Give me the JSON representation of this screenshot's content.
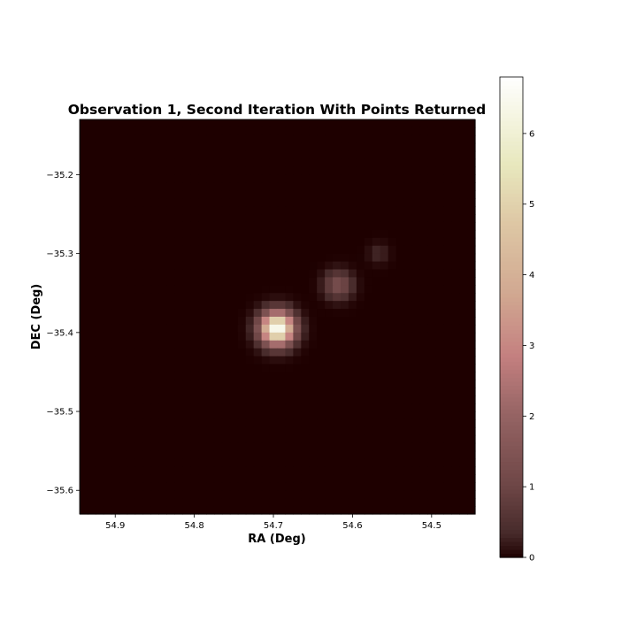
{
  "chart_data": {
    "type": "heatmap",
    "title": "Observation 1, Second Iteration With Points Returned",
    "xlabel": "RA (Deg)",
    "ylabel": "DEC (Deg)",
    "xlim": [
      54.945,
      54.445
    ],
    "ylim": [
      -35.63,
      -35.13
    ],
    "x_ticks": [
      {
        "value": 54.9,
        "label": "54.9"
      },
      {
        "value": 54.8,
        "label": "54.8"
      },
      {
        "value": 54.7,
        "label": "54.7"
      },
      {
        "value": 54.6,
        "label": "54.6"
      },
      {
        "value": 54.5,
        "label": "54.5"
      }
    ],
    "y_ticks": [
      {
        "value": -35.2,
        "label": "−35.2"
      },
      {
        "value": -35.3,
        "label": "−35.3"
      },
      {
        "value": -35.4,
        "label": "−35.4"
      },
      {
        "value": -35.5,
        "label": "−35.5"
      },
      {
        "value": -35.6,
        "label": "−35.6"
      }
    ],
    "colorbar": {
      "min": 0,
      "max": 6.8,
      "ticks": [
        {
          "value": 0,
          "label": "0"
        },
        {
          "value": 1,
          "label": "1"
        },
        {
          "value": 2,
          "label": "2"
        },
        {
          "value": 3,
          "label": "3"
        },
        {
          "value": 4,
          "label": "4"
        },
        {
          "value": 5,
          "label": "5"
        },
        {
          "value": 6,
          "label": "6"
        }
      ],
      "colormap": "pink"
    },
    "grid": {
      "nx": 50,
      "ny": 50,
      "background": 0.0
    },
    "sources": [
      {
        "ra": 54.695,
        "dec": -35.395,
        "peak": 6.8,
        "sigma_deg": 0.014
      },
      {
        "ra": 54.618,
        "dec": -35.34,
        "peak": 1.3,
        "sigma_deg": 0.012
      },
      {
        "ra": 54.567,
        "dec": -35.3,
        "peak": 0.35,
        "sigma_deg": 0.009
      }
    ]
  }
}
